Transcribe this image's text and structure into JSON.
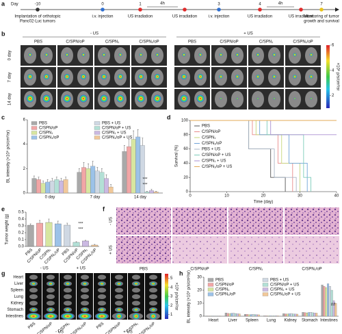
{
  "panel_labels": [
    "a",
    "b",
    "c",
    "d",
    "e",
    "f",
    "g",
    "h"
  ],
  "timeline": {
    "day_label": "Day",
    "days": [
      "-10",
      "0",
      "1",
      "3",
      "4",
      "7"
    ],
    "intervals": [
      "4h",
      "4h"
    ],
    "events": [
      [
        "Implantation of orthotopic",
        "Panc02-Luc tumors"
      ],
      [
        "i.v. injection"
      ],
      [
        "US irradiation"
      ],
      [
        "US irradiation"
      ],
      [
        "i.v. injection"
      ],
      [
        "US irradiation"
      ],
      [
        "US irradiation"
      ],
      [
        "Monitoring of tumor",
        "growth and survival"
      ]
    ]
  },
  "panel_b": {
    "groups": [
      "- US",
      "+ US"
    ],
    "columns": [
      "PBS",
      "C/SPN/oP",
      "C/SPN₁",
      "C/SPN₁/oP",
      "PBS",
      "C/SPN/oP",
      "C/SPN₁",
      "C/SPN₁/oP"
    ],
    "rows": [
      "0 day",
      "7 day",
      "14 day"
    ],
    "colorbar": {
      "lim": [
        1,
        6
      ],
      "ticks": [
        6,
        4,
        2
      ],
      "label": "×10⁶ p/s/cm²/sr"
    }
  },
  "panel_f": {
    "rows": [
      "- US",
      "+ US"
    ],
    "columns": [
      "PBS",
      "C/SPN/oP",
      "C/SPN₁",
      "C/SPN₁/oP"
    ]
  },
  "panel_g": {
    "organs": [
      "Heart",
      "Liver",
      "Spleen",
      "Lung",
      "Kidney",
      "Stomach",
      "Intestines"
    ],
    "columns": [
      "PBS",
      "C/SPN/oP",
      "C/SPN₁",
      "C/SPN₁/oP",
      "PBS",
      "C/SPN/oP",
      "C/SPN₁",
      "C/SPN₁/oP"
    ],
    "groups": [
      "- US",
      "+ US"
    ],
    "colorbar": {
      "lim": [
        0.5,
        5.5
      ],
      "ticks": [
        5,
        4,
        3,
        2,
        1
      ],
      "label": "×10⁶ p/s/cm²/sr"
    }
  },
  "chart_data": [
    {
      "type": "bar",
      "ylabel": "BL intensity (×10⁶ p/s/cm²/sr)",
      "categories": [
        "0 day",
        "7 day",
        "14 day"
      ],
      "ylim": [
        0,
        6
      ],
      "yticks": [
        0,
        2,
        4,
        6
      ],
      "annotations": [
        "***",
        "***"
      ],
      "series": [
        {
          "name": "PBS",
          "color": "#a9a9a9",
          "values": [
            1.2,
            1.7,
            3.4
          ],
          "errors": [
            0.2,
            0.3,
            0.5
          ]
        },
        {
          "name": "C/SPN/oP",
          "color": "#f2a6a6",
          "values": [
            1.1,
            2.1,
            3.8
          ],
          "errors": [
            0.2,
            0.4,
            0.6
          ]
        },
        {
          "name": "C/SPN₁",
          "color": "#d7e6a0",
          "values": [
            0.8,
            2.0,
            4.4
          ],
          "errors": [
            0.2,
            0.4,
            0.7
          ]
        },
        {
          "name": "C/SPN₁/oP",
          "color": "#9cc2e8",
          "values": [
            0.9,
            2.2,
            4.6
          ],
          "errors": [
            0.2,
            0.4,
            0.6
          ]
        },
        {
          "name": "PBS + US",
          "color": "#cfd8e3",
          "values": [
            1.0,
            1.8,
            3.9
          ],
          "errors": [
            0.2,
            0.3,
            0.6
          ]
        },
        {
          "name": "C/SPN/oP + US",
          "color": "#b3e0d6",
          "values": [
            1.1,
            1.7,
            0.1
          ],
          "errors": [
            0.2,
            0.3,
            0.05
          ]
        },
        {
          "name": "C/SPN₁ + US",
          "color": "#cbb9e2",
          "values": [
            1.0,
            1.2,
            0.2
          ],
          "errors": [
            0.2,
            0.3,
            0.1
          ]
        },
        {
          "name": "C/SPN₁/oP + US",
          "color": "#f1c899",
          "values": [
            1.1,
            0.5,
            0.1
          ],
          "errors": [
            0.2,
            0.2,
            0.05
          ]
        }
      ]
    },
    {
      "type": "line",
      "xlabel": "Time (day)",
      "ylabel": "Survival (%)",
      "xlim": [
        0,
        40
      ],
      "xticks": [
        0,
        10,
        20,
        30,
        40
      ],
      "ylim": [
        0,
        100
      ],
      "yticks": [
        0,
        20,
        40,
        60,
        80,
        100
      ],
      "series": [
        {
          "name": "PBS",
          "color": "#555555",
          "x": [
            0,
            16,
            16,
            22,
            22,
            26,
            26
          ],
          "values": [
            100,
            100,
            60,
            60,
            20,
            20,
            0
          ]
        },
        {
          "name": "C/SPN/oP",
          "color": "#e88a8a",
          "x": [
            0,
            17,
            17,
            24,
            24,
            28,
            28
          ],
          "values": [
            100,
            100,
            80,
            80,
            40,
            40,
            0
          ]
        },
        {
          "name": "C/SPN₁",
          "color": "#c5d77a",
          "x": [
            0,
            18,
            18,
            25,
            25,
            30,
            30
          ],
          "values": [
            100,
            100,
            80,
            80,
            40,
            40,
            0
          ]
        },
        {
          "name": "C/SPN₁/oP",
          "color": "#6fa3d8",
          "x": [
            0,
            19,
            19,
            27,
            27,
            32,
            32
          ],
          "values": [
            100,
            100,
            80,
            80,
            40,
            40,
            0
          ]
        },
        {
          "name": "PBS + US",
          "color": "#a9b6c6",
          "x": [
            0,
            16,
            16,
            23,
            23,
            29,
            29
          ],
          "values": [
            100,
            100,
            60,
            60,
            20,
            20,
            0
          ]
        },
        {
          "name": "C/SPN/oP + US",
          "color": "#7ccbb9",
          "x": [
            0,
            21,
            21,
            31,
            31,
            33,
            33
          ],
          "values": [
            100,
            100,
            80,
            80,
            20,
            20,
            0
          ]
        },
        {
          "name": "C/SPN₁ + US",
          "color": "#a98fd0",
          "x": [
            0,
            22,
            22,
            40
          ],
          "values": [
            100,
            100,
            80,
            80
          ]
        },
        {
          "name": "C/SPN₁/oP + US",
          "color": "#e3a857",
          "x": [
            0,
            40
          ],
          "values": [
            100,
            100
          ]
        }
      ]
    },
    {
      "type": "bar",
      "ylabel": "Tumor weight (g)",
      "categories": [
        "PBS",
        "C/SPN/oP",
        "C/SPN₁",
        "C/SPN₁/oP",
        "PBS",
        "C/SPN/oP",
        "C/SPN₁",
        "C/SPN₁/oP"
      ],
      "groups": [
        "- US",
        "+ US"
      ],
      "values": [
        0.31,
        0.34,
        0.35,
        0.33,
        0.31,
        0.06,
        0.08,
        0.02
      ],
      "errors": [
        0.02,
        0.04,
        0.05,
        0.04,
        0.03,
        0.01,
        0.01,
        0.01
      ],
      "colors": [
        "#a9a9a9",
        "#f2a6a6",
        "#d7e6a0",
        "#9cc2e8",
        "#cfd8e3",
        "#b3e0d6",
        "#cbb9e2",
        "#f1c899"
      ],
      "ylim": [
        0,
        0.5
      ],
      "yticks": [
        {
          "value": 0,
          "label": "0.0"
        },
        0.1,
        0.2,
        0.3,
        0.4,
        0.5
      ],
      "annotations": [
        "***",
        "***"
      ]
    },
    {
      "type": "bar",
      "ylabel": "BL intensity (×10⁶ p/s/cm²/sr)",
      "categories": [
        "Heart",
        "Liver",
        "Spleen",
        "Lung",
        "Kidney",
        "Stomach",
        "Intestines"
      ],
      "ylim": [
        0,
        30
      ],
      "yticks": [
        0,
        10,
        20,
        30
      ],
      "annotations": [
        "##"
      ],
      "series": [
        {
          "name": "PBS",
          "color": "#a9a9a9",
          "values": [
            0.2,
            2.5,
            1.5,
            0.3,
            2.0,
            3.0,
            24
          ]
        },
        {
          "name": "C/SPN/oP",
          "color": "#f2a6a6",
          "values": [
            0.2,
            2.2,
            1.4,
            0.3,
            1.8,
            2.8,
            23
          ]
        },
        {
          "name": "C/SPN₁",
          "color": "#d7e6a0",
          "values": [
            0.2,
            2.0,
            1.2,
            0.3,
            1.7,
            2.6,
            22
          ]
        },
        {
          "name": "C/SPN₁/oP",
          "color": "#9cc2e8",
          "values": [
            0.2,
            2.3,
            1.3,
            0.3,
            1.9,
            2.9,
            25
          ]
        },
        {
          "name": "PBS + US",
          "color": "#cfd8e3",
          "values": [
            0.2,
            2.4,
            1.5,
            0.3,
            2.1,
            3.1,
            23
          ]
        },
        {
          "name": "C/SPN/oP + US",
          "color": "#b3e0d6",
          "values": [
            0.2,
            2.1,
            1.3,
            0.3,
            1.8,
            2.7,
            20
          ]
        },
        {
          "name": "C/SPN₁ + US",
          "color": "#cbb9e2",
          "values": [
            0.2,
            1.9,
            1.2,
            0.3,
            1.7,
            2.5,
            12
          ]
        },
        {
          "name": "C/SPN₁/oP + US",
          "color": "#f1c899",
          "values": [
            0.2,
            1.8,
            1.1,
            0.3,
            1.6,
            2.4,
            10
          ]
        }
      ]
    }
  ]
}
